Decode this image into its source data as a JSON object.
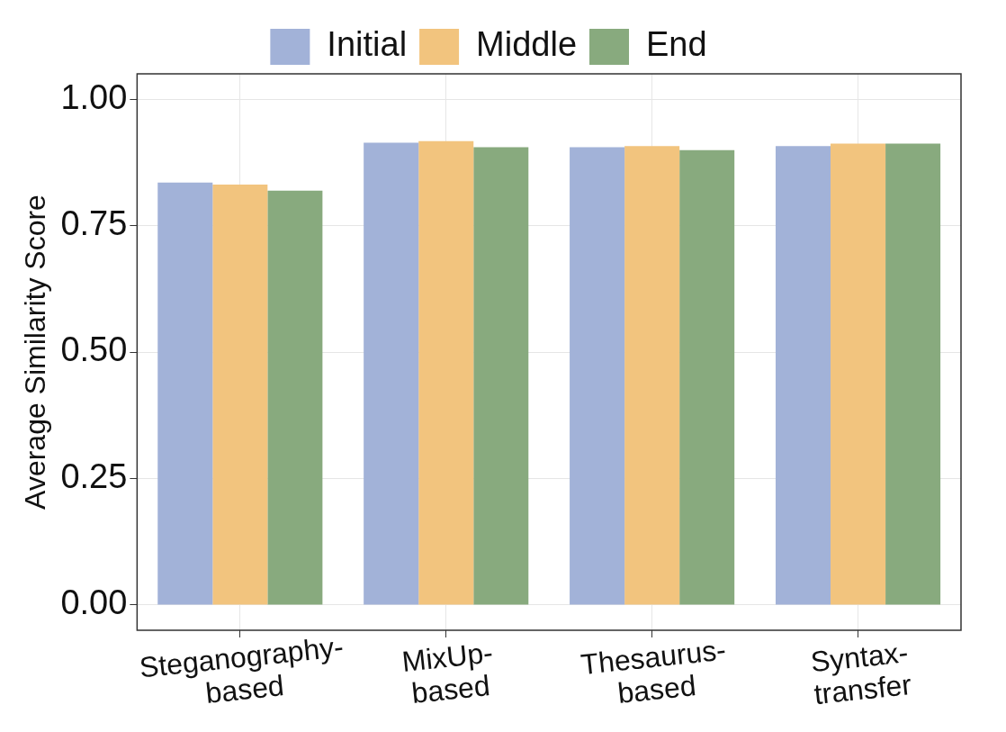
{
  "chart_data": {
    "type": "bar",
    "ylabel": "Average Similarity Score",
    "categories": [
      "Steganography-based",
      "MixUp-based",
      "Thesaurus-based",
      "Syntax-transfer"
    ],
    "series": [
      {
        "name": "Initial",
        "color": "#a2b2d8",
        "values": [
          0.835,
          0.914,
          0.905,
          0.907
        ]
      },
      {
        "name": "Middle",
        "color": "#f2c47e",
        "values": [
          0.831,
          0.917,
          0.907,
          0.912
        ]
      },
      {
        "name": "End",
        "color": "#88aa7e",
        "values": [
          0.819,
          0.905,
          0.899,
          0.912
        ]
      }
    ],
    "ylim": [
      -0.05,
      1.05
    ],
    "yticks": [
      {
        "value": 0,
        "label": "0.00"
      },
      {
        "value": 0.25,
        "label": "0.25"
      },
      {
        "value": 0.5,
        "label": "0.50"
      },
      {
        "value": 0.75,
        "label": "0.75"
      },
      {
        "value": 1,
        "label": "1.00"
      }
    ],
    "grid": true,
    "legend": "top"
  }
}
